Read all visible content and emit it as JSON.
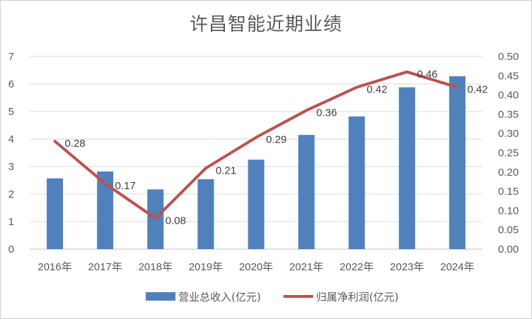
{
  "chart_data": {
    "type": "bar+line",
    "title": "许昌智能近期业绩",
    "categories": [
      "2016年",
      "2017年",
      "2018年",
      "2019年",
      "2020年",
      "2021年",
      "2022年",
      "2023年",
      "2024年"
    ],
    "series": [
      {
        "name": "营业总收入(亿元)",
        "type": "bar",
        "axis": "left",
        "color": "#4f81bd",
        "values": [
          2.57,
          2.82,
          2.17,
          2.54,
          3.25,
          4.15,
          4.82,
          5.88,
          6.28
        ]
      },
      {
        "name": "归属净利润(亿元)",
        "type": "line",
        "axis": "right",
        "color": "#c0504d",
        "values": [
          0.28,
          0.17,
          0.08,
          0.21,
          0.29,
          0.36,
          0.42,
          0.46,
          0.42
        ],
        "data_labels": [
          "0.28",
          "0.17",
          "0.08",
          "0.21",
          "0.29",
          "0.36",
          "0.42",
          "0.46",
          "0.42"
        ]
      }
    ],
    "y_left": {
      "min": 0,
      "max": 7,
      "ticks": [
        "0",
        "1",
        "2",
        "3",
        "4",
        "5",
        "6",
        "7"
      ]
    },
    "y_right": {
      "min": 0,
      "max": 0.5,
      "ticks": [
        "0.00",
        "0.05",
        "0.10",
        "0.15",
        "0.20",
        "0.25",
        "0.30",
        "0.35",
        "0.40",
        "0.45",
        "0.50"
      ]
    },
    "grid": true,
    "legend": "bottom"
  }
}
